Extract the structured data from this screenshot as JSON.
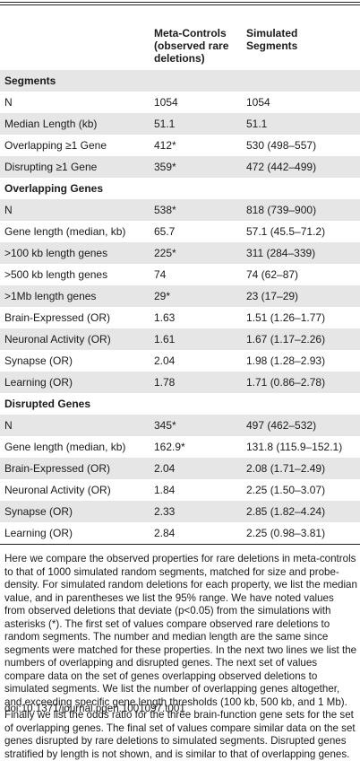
{
  "table": {
    "columns": [
      "Meta-Controls (observed rare deletions)",
      "Simulated Segments"
    ],
    "sections": [
      {
        "title": "Segments",
        "rows": [
          [
            "N",
            "1054",
            "1054"
          ],
          [
            "Median Length (kb)",
            "51.1",
            "51.1"
          ],
          [
            "Overlapping ≥1 Gene",
            "412*",
            "530 (498–557)"
          ],
          [
            "Disrupting ≥1 Gene",
            "359*",
            "472 (442–499)"
          ]
        ]
      },
      {
        "title": "Overlapping Genes",
        "rows": [
          [
            "N",
            "538*",
            "818 (739–900)"
          ],
          [
            "Gene length (median, kb)",
            "65.7",
            "57.1 (45.5–71.2)"
          ],
          [
            ">100 kb length genes",
            "225*",
            "311 (284–339)"
          ],
          [
            ">500 kb length genes",
            "74",
            "74 (62–87)"
          ],
          [
            ">1Mb length genes",
            "29*",
            "23 (17–29)"
          ],
          [
            "Brain-Expressed (OR)",
            "1.63",
            "1.51 (1.26–1.77)"
          ],
          [
            "Neuronal Activity (OR)",
            "1.61",
            "1.67 (1.17–2.26)"
          ],
          [
            "Synapse (OR)",
            "2.04",
            "1.98 (1.28–2.93)"
          ],
          [
            "Learning (OR)",
            "1.78",
            "1.71 (0.86–2.78)"
          ]
        ]
      },
      {
        "title": "Disrupted Genes",
        "rows": [
          [
            "N",
            "345*",
            "497 (462–532)"
          ],
          [
            "Gene length (median, kb)",
            "162.9*",
            "131.8 (115.9–152.1)"
          ],
          [
            "Brain-Expressed (OR)",
            "2.04",
            "2.08 (1.71–2.49)"
          ],
          [
            "Neuronal Activity (OR)",
            "1.84",
            "2.25 (1.50–3.07)"
          ],
          [
            "Synapse (OR)",
            "2.33",
            "2.85 (1.82–4.24)"
          ],
          [
            "Learning (OR)",
            "2.84",
            "2.25 (0.98–3.81)"
          ]
        ]
      }
    ]
  },
  "caption": "Here we compare the observed properties for rare deletions in meta-controls to that of 1000 simulated random segments, matched for size and probe-density. For simulated random deletions for each property, we list the median value, and in parentheses we list the 95% range. We have noted values from observed deletions that deviate (p<0.05) from the simulations with asterisks (*). The first set of values compare observed rare deletions to random segments. The number and median length are the same since segments were matched for these properties. In the next two lines we list the numbers of overlapping and disrupted genes. The next set of values compare data on the set of genes overlapping observed deletions to simulated segments. We list the number of overlapping genes altogether, and exceeding specific gene length thresholds (100 kb, 500 kb, and 1 Mb). Finally we list the odds ratio for the three brain-function gene sets for the set of overlapping genes. The final set of values compare similar data on the set genes disrupted by rare deletions to simulated segments. Disrupted genes stratified by length is not shown, and is similar to that of overlapping genes.",
  "doi": "doi:10.1371/journal.pgen.1001097.t001"
}
